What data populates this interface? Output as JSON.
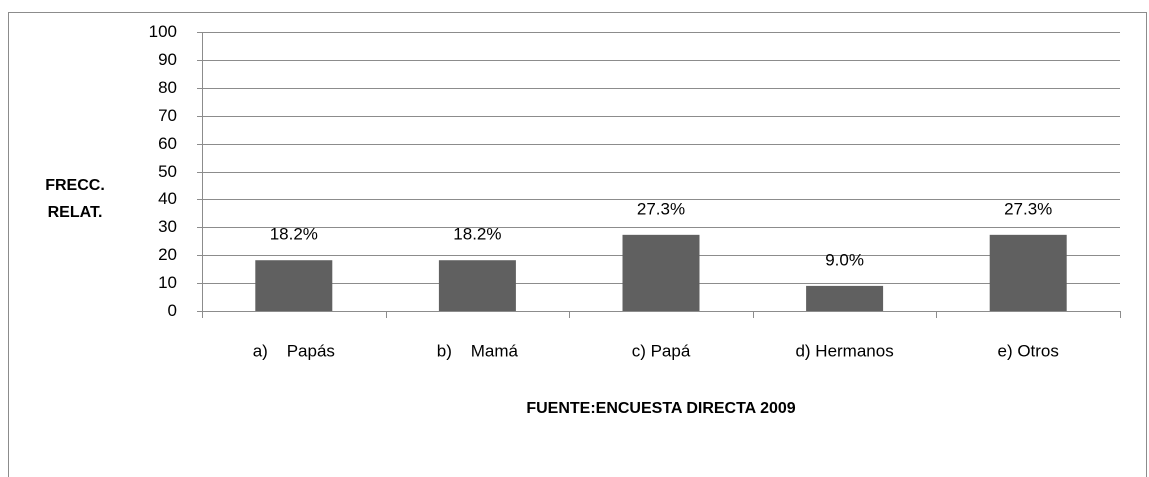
{
  "chart_data": {
    "type": "bar",
    "ylabel": [
      "FRECC.",
      "RELAT."
    ],
    "xlabel": "FUENTE:ENCUESTA DIRECTA 2009",
    "categories": [
      "a)    Papás",
      "b)    Mamá",
      "c) Papá",
      "d) Hermanos",
      "e) Otros"
    ],
    "values": [
      18.2,
      18.2,
      27.3,
      9.0,
      27.3
    ],
    "value_labels": [
      "18.2%",
      "18.2%",
      "27.3%",
      "9.0%",
      "27.3%"
    ],
    "color": "#606060",
    "ylim": [
      0,
      100
    ],
    "yticks": [
      0,
      10,
      20,
      30,
      40,
      50,
      60,
      70,
      80,
      90,
      100
    ],
    "grid": true
  }
}
